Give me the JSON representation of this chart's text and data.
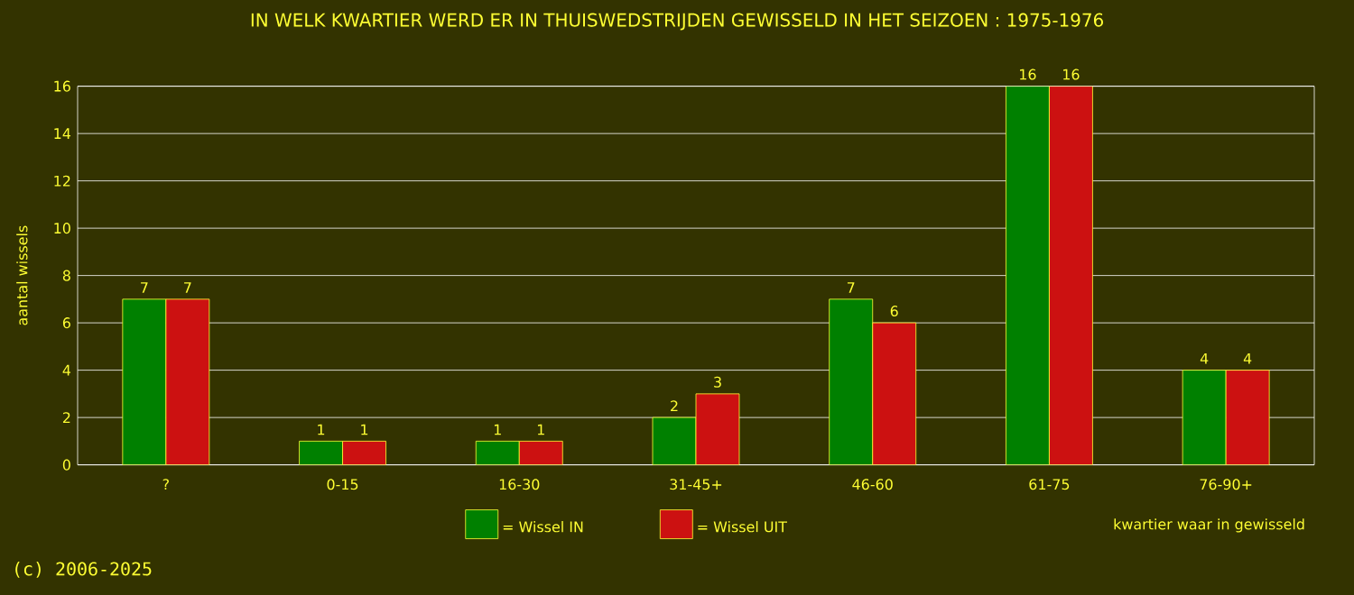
{
  "chart_data": {
    "type": "bar",
    "title": "IN WELK KWARTIER WERD ER IN THUISWEDSTRIJDEN GEWISSELD IN HET SEIZOEN : 1975-1976",
    "categories": [
      "?",
      "0-15",
      "16-30",
      "31-45+",
      "46-60",
      "61-75",
      "76-90+"
    ],
    "series": [
      {
        "name": "= Wissel IN",
        "color": "#008000",
        "values": [
          7,
          1,
          1,
          2,
          7,
          16,
          4
        ]
      },
      {
        "name": "= Wissel UIT",
        "color": "#cc1111",
        "values": [
          7,
          1,
          1,
          3,
          6,
          16,
          4
        ]
      }
    ],
    "xlabel": "kwartier waar in gewisseld",
    "ylabel": "aantal wissels",
    "ylim": [
      0,
      16
    ],
    "yticks": [
      0,
      2,
      4,
      6,
      8,
      10,
      12,
      14,
      16
    ],
    "grid": "y",
    "legend": "bottom",
    "data_labels": true,
    "annotations": [
      "(c) 2006-2025"
    ]
  }
}
